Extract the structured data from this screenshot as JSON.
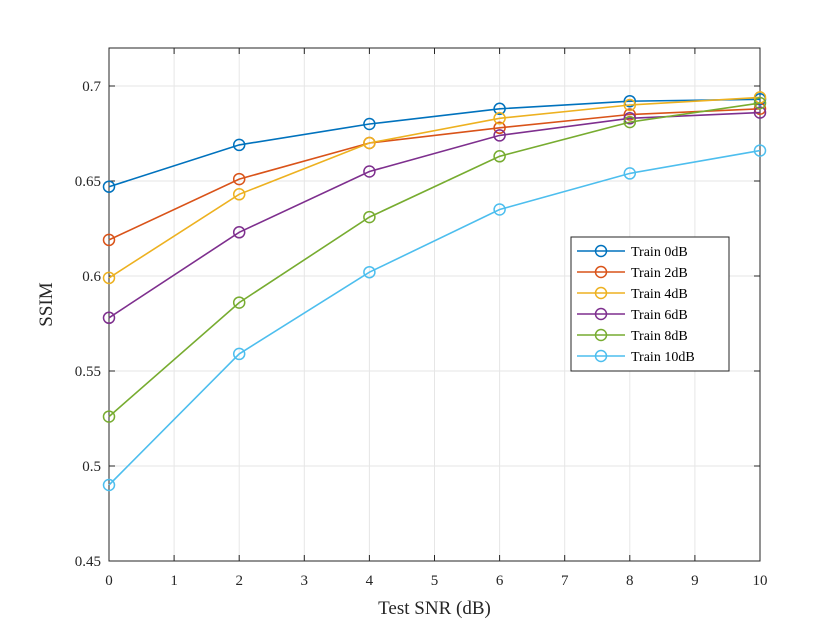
{
  "chart_data": {
    "type": "line",
    "title": "",
    "xlabel": "Test SNR (dB)",
    "ylabel": "SSIM",
    "xlim": [
      0,
      10
    ],
    "ylim": [
      0.45,
      0.72
    ],
    "xticks": [
      0,
      1,
      2,
      3,
      4,
      5,
      6,
      7,
      8,
      9,
      10
    ],
    "yticks": [
      0.45,
      0.5,
      0.55,
      0.6,
      0.65,
      0.7
    ],
    "xtick_labels": [
      "0",
      "1",
      "2",
      "3",
      "4",
      "5",
      "6",
      "7",
      "8",
      "9",
      "10"
    ],
    "ytick_labels": [
      "0.45",
      "0.5",
      "0.55",
      "0.6",
      "0.65",
      "0.7"
    ],
    "grid": true,
    "legend_position": "center-right",
    "marker": "open-circle",
    "x": [
      0,
      2,
      4,
      6,
      8,
      10
    ],
    "series": [
      {
        "name": "Train 0dB",
        "color": "#0072BD",
        "values": [
          0.647,
          0.669,
          0.68,
          0.688,
          0.692,
          0.693
        ]
      },
      {
        "name": "Train 2dB",
        "color": "#D95319",
        "values": [
          0.619,
          0.651,
          0.67,
          0.678,
          0.685,
          0.688
        ]
      },
      {
        "name": "Train 4dB",
        "color": "#EDB120",
        "values": [
          0.599,
          0.643,
          0.67,
          0.683,
          0.69,
          0.694
        ]
      },
      {
        "name": "Train 6dB",
        "color": "#7E2F8E",
        "values": [
          0.578,
          0.623,
          0.655,
          0.674,
          0.683,
          0.686
        ]
      },
      {
        "name": "Train 8dB",
        "color": "#77AC30",
        "values": [
          0.526,
          0.586,
          0.631,
          0.663,
          0.681,
          0.691
        ]
      },
      {
        "name": "Train 10dB",
        "color": "#4DBEEE",
        "values": [
          0.49,
          0.559,
          0.602,
          0.635,
          0.654,
          0.666
        ]
      }
    ]
  }
}
